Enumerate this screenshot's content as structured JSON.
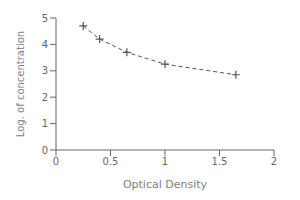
{
  "chart_data": {
    "type": "line",
    "x": [
      0.25,
      0.4,
      0.65,
      1.0,
      1.65
    ],
    "values": [
      4.7,
      4.2,
      3.7,
      3.25,
      2.85
    ],
    "xlabel": "Optical Density",
    "ylabel": "Log. of concentration",
    "xlim": [
      0,
      2
    ],
    "ylim": [
      0,
      5
    ],
    "xticks": [
      0,
      0.5,
      1,
      1.5,
      2
    ],
    "yticks": [
      0,
      1,
      2,
      3,
      4,
      5
    ],
    "color": "#555555",
    "marker": "plus",
    "line_style": "dashed",
    "grid": false
  }
}
